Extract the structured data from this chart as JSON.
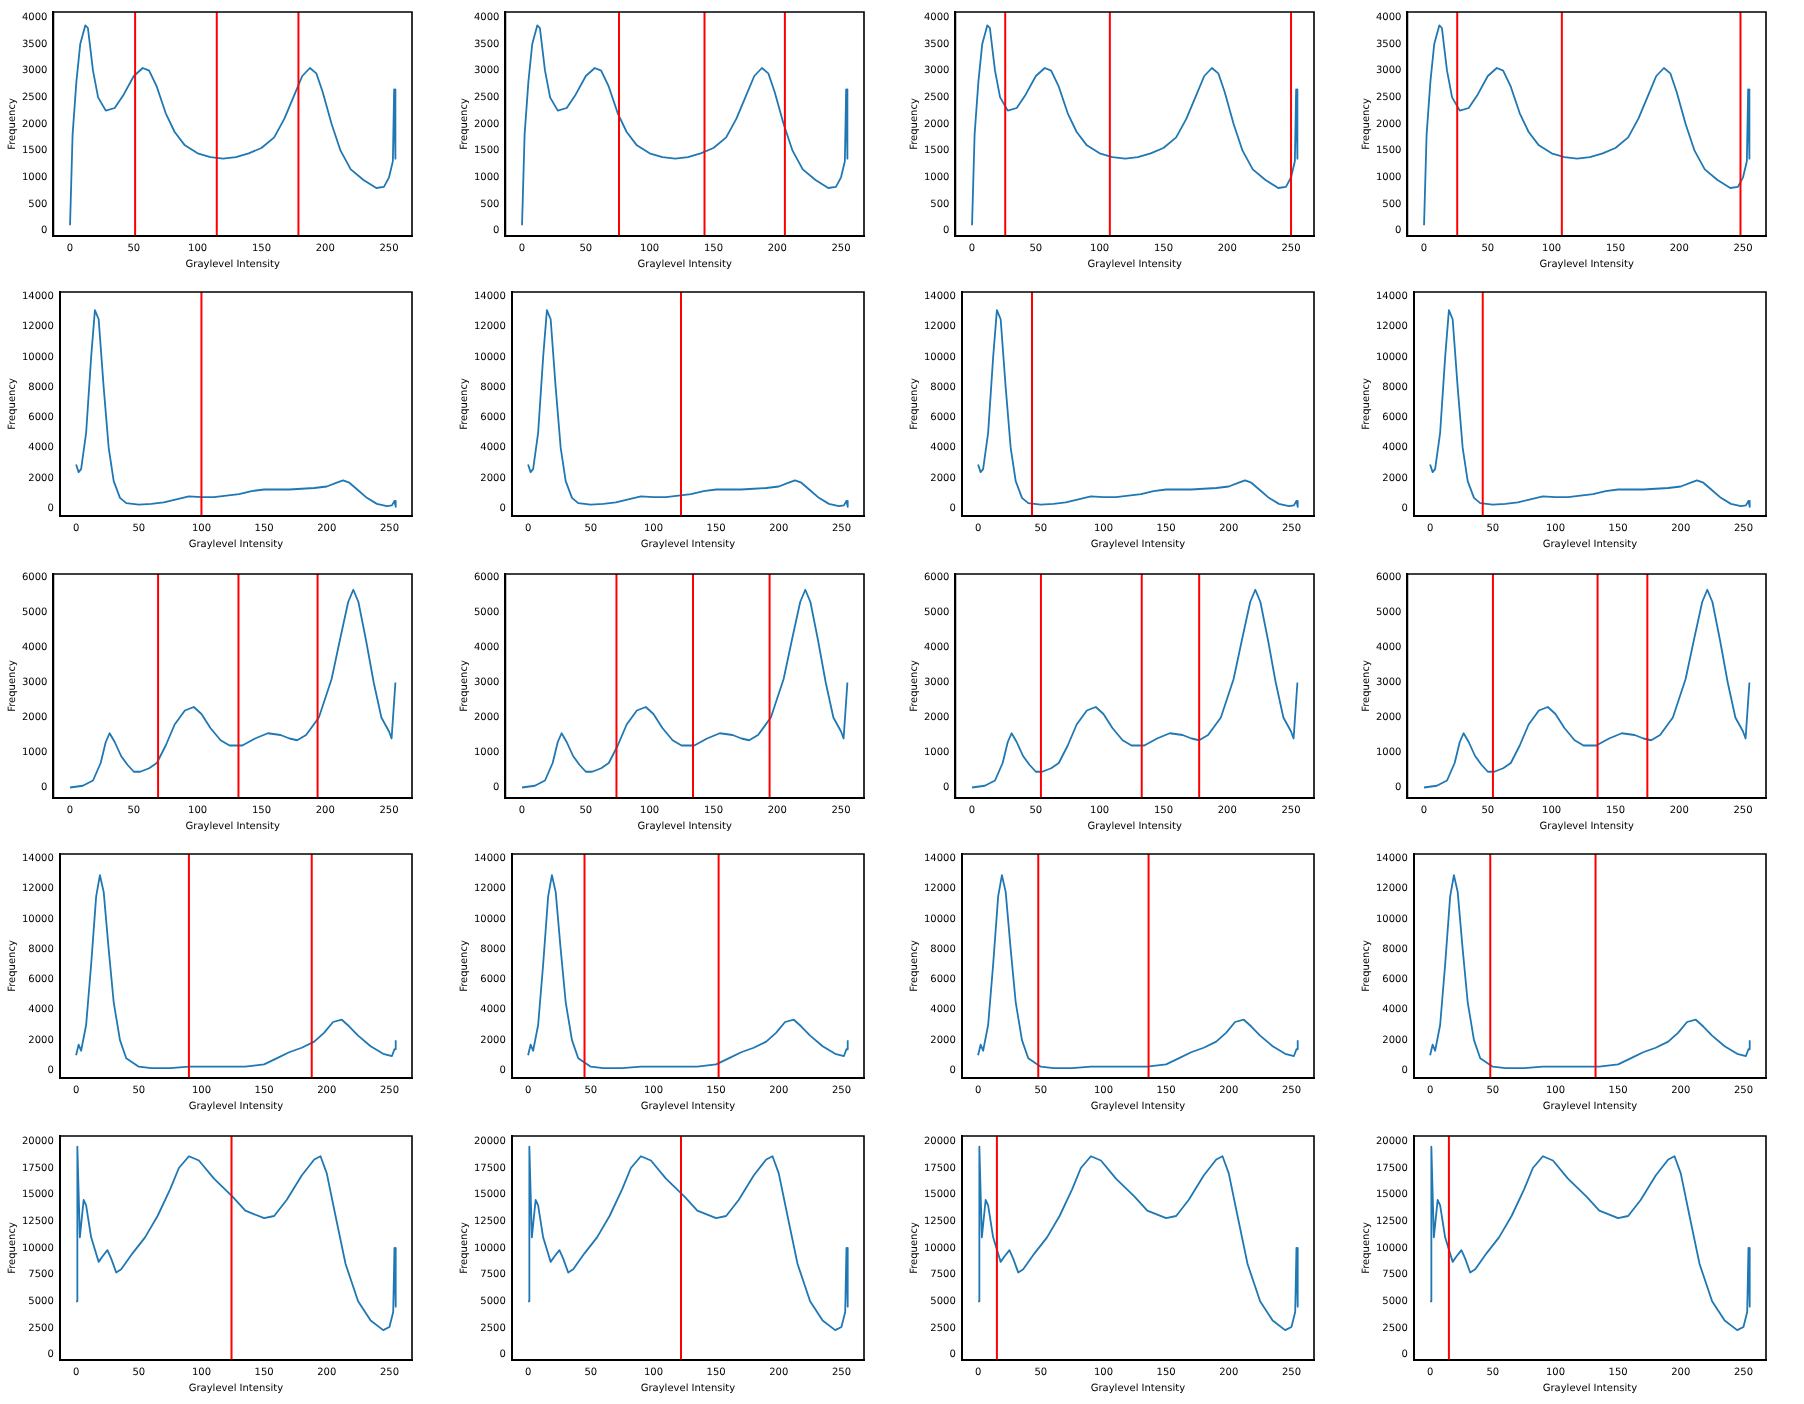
{
  "chart_data": [
    {
      "type": "line",
      "xlabel": "Graylevel Intensity",
      "ylabel": "Frequency",
      "x": [
        0,
        2,
        5,
        8,
        12,
        14,
        18,
        22,
        28,
        35,
        42,
        50,
        57,
        62,
        68,
        75,
        82,
        90,
        100,
        110,
        120,
        130,
        140,
        150,
        160,
        168,
        175,
        182,
        188,
        193,
        198,
        205,
        212,
        220,
        230,
        240,
        246,
        250,
        253,
        254,
        255
      ],
      "series": [
        {
          "color": "#1f77b4",
          "values": [
            100,
            1800,
            2800,
            3500,
            3850,
            3800,
            3000,
            2500,
            2250,
            2300,
            2550,
            2900,
            3050,
            3000,
            2700,
            2200,
            1850,
            1600,
            1450,
            1380,
            1350,
            1380,
            1450,
            1550,
            1750,
            2100,
            2500,
            2900,
            3050,
            2950,
            2600,
            2000,
            1500,
            1150,
            950,
            800,
            820,
            1000,
            1300,
            2650,
            1350
          ]
        }
      ],
      "xlim": [
        -13,
        268
      ],
      "ylim": [
        -100,
        4100
      ],
      "xticks": [
        0,
        50,
        100,
        150,
        200,
        250
      ],
      "yticks": [
        0,
        500,
        1000,
        1500,
        2000,
        2500,
        3000,
        3500,
        4000
      ],
      "ref_lines": [
        {
          "axis": "x",
          "value": 51,
          "color": "#ff0000"
        },
        {
          "axis": "x",
          "value": 115,
          "color": "#ff0000"
        },
        {
          "axis": "x",
          "value": 179,
          "color": "#ff0000"
        }
      ]
    },
    {
      "type": "line",
      "xlabel": "Graylevel Intensity",
      "ylabel": "Frequency",
      "x": [
        0,
        2,
        5,
        8,
        12,
        14,
        18,
        22,
        28,
        35,
        42,
        50,
        57,
        62,
        68,
        75,
        82,
        90,
        100,
        110,
        120,
        130,
        140,
        150,
        160,
        168,
        175,
        182,
        188,
        193,
        198,
        205,
        212,
        220,
        230,
        240,
        246,
        250,
        253,
        254,
        255
      ],
      "series": [
        {
          "color": "#1f77b4",
          "values": [
            100,
            1800,
            2800,
            3500,
            3850,
            3800,
            3000,
            2500,
            2250,
            2300,
            2550,
            2900,
            3050,
            3000,
            2700,
            2200,
            1850,
            1600,
            1450,
            1380,
            1350,
            1380,
            1450,
            1550,
            1750,
            2100,
            2500,
            2900,
            3050,
            2950,
            2600,
            2000,
            1500,
            1150,
            950,
            800,
            820,
            1000,
            1300,
            2650,
            1350
          ]
        }
      ],
      "xlim": [
        -13,
        268
      ],
      "ylim": [
        -100,
        4100
      ],
      "xticks": [
        0,
        50,
        100,
        150,
        200,
        250
      ],
      "yticks": [
        0,
        500,
        1000,
        1500,
        2000,
        2500,
        3000,
        3500,
        4000
      ],
      "ref_lines": [
        {
          "axis": "x",
          "value": 76,
          "color": "#ff0000"
        },
        {
          "axis": "x",
          "value": 143,
          "color": "#ff0000"
        },
        {
          "axis": "x",
          "value": 206,
          "color": "#ff0000"
        }
      ]
    },
    {
      "type": "line",
      "xlabel": "Graylevel Intensity",
      "ylabel": "Frequency",
      "x": [
        0,
        2,
        5,
        8,
        12,
        14,
        18,
        22,
        28,
        35,
        42,
        50,
        57,
        62,
        68,
        75,
        82,
        90,
        100,
        110,
        120,
        130,
        140,
        150,
        160,
        168,
        175,
        182,
        188,
        193,
        198,
        205,
        212,
        220,
        230,
        240,
        246,
        250,
        253,
        254,
        255
      ],
      "series": [
        {
          "color": "#1f77b4",
          "values": [
            100,
            1800,
            2800,
            3500,
            3850,
            3800,
            3000,
            2500,
            2250,
            2300,
            2550,
            2900,
            3050,
            3000,
            2700,
            2200,
            1850,
            1600,
            1450,
            1380,
            1350,
            1380,
            1450,
            1550,
            1750,
            2100,
            2500,
            2900,
            3050,
            2950,
            2600,
            2000,
            1500,
            1150,
            950,
            800,
            820,
            1000,
            1300,
            2650,
            1350
          ]
        }
      ],
      "xlim": [
        -13,
        268
      ],
      "ylim": [
        -100,
        4100
      ],
      "xticks": [
        0,
        50,
        100,
        150,
        200,
        250
      ],
      "yticks": [
        0,
        500,
        1000,
        1500,
        2000,
        2500,
        3000,
        3500,
        4000
      ],
      "ref_lines": [
        {
          "axis": "x",
          "value": 26,
          "color": "#ff0000"
        },
        {
          "axis": "x",
          "value": 108,
          "color": "#ff0000"
        },
        {
          "axis": "x",
          "value": 250,
          "color": "#ff0000"
        }
      ]
    },
    {
      "type": "line",
      "xlabel": "Graylevel Intensity",
      "ylabel": "Frequency",
      "x": [
        0,
        2,
        5,
        8,
        12,
        14,
        18,
        22,
        28,
        35,
        42,
        50,
        57,
        62,
        68,
        75,
        82,
        90,
        100,
        110,
        120,
        130,
        140,
        150,
        160,
        168,
        175,
        182,
        188,
        193,
        198,
        205,
        212,
        220,
        230,
        240,
        246,
        250,
        253,
        254,
        255
      ],
      "series": [
        {
          "color": "#1f77b4",
          "values": [
            100,
            1800,
            2800,
            3500,
            3850,
            3800,
            3000,
            2500,
            2250,
            2300,
            2550,
            2900,
            3050,
            3000,
            2700,
            2200,
            1850,
            1600,
            1450,
            1380,
            1350,
            1380,
            1450,
            1550,
            1750,
            2100,
            2500,
            2900,
            3050,
            2950,
            2600,
            2000,
            1500,
            1150,
            950,
            800,
            820,
            1000,
            1300,
            2650,
            1350
          ]
        }
      ],
      "xlim": [
        -13,
        268
      ],
      "ylim": [
        -100,
        4100
      ],
      "xticks": [
        0,
        50,
        100,
        150,
        200,
        250
      ],
      "yticks": [
        0,
        500,
        1000,
        1500,
        2000,
        2500,
        3000,
        3500,
        4000
      ],
      "ref_lines": [
        {
          "axis": "x",
          "value": 26,
          "color": "#ff0000"
        },
        {
          "axis": "x",
          "value": 108,
          "color": "#ff0000"
        },
        {
          "axis": "x",
          "value": 248,
          "color": "#ff0000"
        }
      ]
    },
    {
      "type": "line",
      "xlabel": "Graylevel Intensity",
      "ylabel": "Frequency",
      "x": [
        0,
        2,
        4,
        8,
        12,
        15,
        18,
        22,
        26,
        30,
        35,
        40,
        50,
        60,
        70,
        80,
        90,
        100,
        110,
        120,
        130,
        140,
        150,
        160,
        170,
        180,
        190,
        200,
        208,
        213,
        218,
        225,
        232,
        240,
        248,
        252,
        254,
        255
      ],
      "series": [
        {
          "color": "#1f77b4",
          "values": [
            2900,
            2400,
            2600,
            5000,
            10000,
            13100,
            12500,
            8000,
            4000,
            1800,
            700,
            350,
            250,
            300,
            400,
            600,
            800,
            750,
            750,
            850,
            950,
            1150,
            1250,
            1250,
            1250,
            1300,
            1350,
            1450,
            1700,
            1850,
            1700,
            1200,
            700,
            300,
            150,
            200,
            500,
            100
          ]
        }
      ],
      "xlim": [
        -13,
        268
      ],
      "ylim": [
        -500,
        14300
      ],
      "xticks": [
        0,
        50,
        100,
        150,
        200,
        250
      ],
      "yticks": [
        0,
        2000,
        4000,
        6000,
        8000,
        10000,
        12000,
        14000
      ],
      "ref_lines": [
        {
          "axis": "x",
          "value": 100,
          "color": "#ff0000"
        }
      ]
    },
    {
      "type": "line",
      "xlabel": "Graylevel Intensity",
      "ylabel": "Frequency",
      "x": [
        0,
        2,
        4,
        8,
        12,
        15,
        18,
        22,
        26,
        30,
        35,
        40,
        50,
        60,
        70,
        80,
        90,
        100,
        110,
        120,
        130,
        140,
        150,
        160,
        170,
        180,
        190,
        200,
        208,
        213,
        218,
        225,
        232,
        240,
        248,
        252,
        254,
        255
      ],
      "series": [
        {
          "color": "#1f77b4",
          "values": [
            2900,
            2400,
            2600,
            5000,
            10000,
            13100,
            12500,
            8000,
            4000,
            1800,
            700,
            350,
            250,
            300,
            400,
            600,
            800,
            750,
            750,
            850,
            950,
            1150,
            1250,
            1250,
            1250,
            1300,
            1350,
            1450,
            1700,
            1850,
            1700,
            1200,
            700,
            300,
            150,
            200,
            500,
            100
          ]
        }
      ],
      "xlim": [
        -13,
        268
      ],
      "ylim": [
        -500,
        14300
      ],
      "xticks": [
        0,
        50,
        100,
        150,
        200,
        250
      ],
      "yticks": [
        0,
        2000,
        4000,
        6000,
        8000,
        10000,
        12000,
        14000
      ],
      "ref_lines": [
        {
          "axis": "x",
          "value": 122,
          "color": "#ff0000"
        }
      ]
    },
    {
      "type": "line",
      "xlabel": "Graylevel Intensity",
      "ylabel": "Frequency",
      "x": [
        0,
        2,
        4,
        8,
        12,
        15,
        18,
        22,
        26,
        30,
        35,
        40,
        50,
        60,
        70,
        80,
        90,
        100,
        110,
        120,
        130,
        140,
        150,
        160,
        170,
        180,
        190,
        200,
        208,
        213,
        218,
        225,
        232,
        240,
        248,
        252,
        254,
        255
      ],
      "series": [
        {
          "color": "#1f77b4",
          "values": [
            2900,
            2400,
            2600,
            5000,
            10000,
            13100,
            12500,
            8000,
            4000,
            1800,
            700,
            350,
            250,
            300,
            400,
            600,
            800,
            750,
            750,
            850,
            950,
            1150,
            1250,
            1250,
            1250,
            1300,
            1350,
            1450,
            1700,
            1850,
            1700,
            1200,
            700,
            300,
            150,
            200,
            500,
            100
          ]
        }
      ],
      "xlim": [
        -13,
        268
      ],
      "ylim": [
        -500,
        14300
      ],
      "xticks": [
        0,
        50,
        100,
        150,
        200,
        250
      ],
      "yticks": [
        0,
        2000,
        4000,
        6000,
        8000,
        10000,
        12000,
        14000
      ],
      "ref_lines": [
        {
          "axis": "x",
          "value": 43,
          "color": "#ff0000"
        }
      ]
    },
    {
      "type": "line",
      "xlabel": "Graylevel Intensity",
      "ylabel": "Frequency",
      "x": [
        0,
        2,
        4,
        8,
        12,
        15,
        18,
        22,
        26,
        30,
        35,
        40,
        50,
        60,
        70,
        80,
        90,
        100,
        110,
        120,
        130,
        140,
        150,
        160,
        170,
        180,
        190,
        200,
        208,
        213,
        218,
        225,
        232,
        240,
        248,
        252,
        254,
        255
      ],
      "series": [
        {
          "color": "#1f77b4",
          "values": [
            2900,
            2400,
            2600,
            5000,
            10000,
            13100,
            12500,
            8000,
            4000,
            1800,
            700,
            350,
            250,
            300,
            400,
            600,
            800,
            750,
            750,
            850,
            950,
            1150,
            1250,
            1250,
            1250,
            1300,
            1350,
            1450,
            1700,
            1850,
            1700,
            1200,
            700,
            300,
            150,
            200,
            500,
            100
          ]
        }
      ],
      "xlim": [
        -13,
        268
      ],
      "ylim": [
        -500,
        14300
      ],
      "xticks": [
        0,
        50,
        100,
        150,
        200,
        250
      ],
      "yticks": [
        0,
        2000,
        4000,
        6000,
        8000,
        10000,
        12000,
        14000
      ],
      "ref_lines": [
        {
          "axis": "x",
          "value": 42,
          "color": "#ff0000"
        }
      ]
    },
    {
      "type": "line",
      "xlabel": "Graylevel Intensity",
      "ylabel": "Frequency",
      "x": [
        0,
        10,
        18,
        24,
        28,
        31,
        35,
        40,
        45,
        50,
        55,
        62,
        68,
        75,
        82,
        90,
        97,
        103,
        110,
        118,
        125,
        135,
        145,
        155,
        165,
        172,
        178,
        185,
        195,
        205,
        212,
        218,
        222,
        226,
        232,
        238,
        244,
        250,
        252,
        255
      ],
      "series": [
        {
          "color": "#1f77b4",
          "values": [
            0,
            50,
            200,
            700,
            1300,
            1550,
            1300,
            900,
            650,
            450,
            450,
            550,
            700,
            1200,
            1800,
            2200,
            2300,
            2100,
            1700,
            1350,
            1200,
            1200,
            1400,
            1550,
            1500,
            1400,
            1350,
            1500,
            2000,
            3100,
            4300,
            5300,
            5650,
            5300,
            4200,
            3000,
            2000,
            1600,
            1400,
            3000
          ]
        }
      ],
      "xlim": [
        -13,
        268
      ],
      "ylim": [
        -300,
        6100
      ],
      "xticks": [
        0,
        50,
        100,
        150,
        200,
        250
      ],
      "yticks": [
        0,
        1000,
        2000,
        3000,
        4000,
        5000,
        6000
      ],
      "ref_lines": [
        {
          "axis": "x",
          "value": 69,
          "color": "#ff0000"
        },
        {
          "axis": "x",
          "value": 132,
          "color": "#ff0000"
        },
        {
          "axis": "x",
          "value": 194,
          "color": "#ff0000"
        }
      ]
    },
    {
      "type": "line",
      "xlabel": "Graylevel Intensity",
      "ylabel": "Frequency",
      "x": [
        0,
        10,
        18,
        24,
        28,
        31,
        35,
        40,
        45,
        50,
        55,
        62,
        68,
        75,
        82,
        90,
        97,
        103,
        110,
        118,
        125,
        135,
        145,
        155,
        165,
        172,
        178,
        185,
        195,
        205,
        212,
        218,
        222,
        226,
        232,
        238,
        244,
        250,
        252,
        255
      ],
      "series": [
        {
          "color": "#1f77b4",
          "values": [
            0,
            50,
            200,
            700,
            1300,
            1550,
            1300,
            900,
            650,
            450,
            450,
            550,
            700,
            1200,
            1800,
            2200,
            2300,
            2100,
            1700,
            1350,
            1200,
            1200,
            1400,
            1550,
            1500,
            1400,
            1350,
            1500,
            2000,
            3100,
            4300,
            5300,
            5650,
            5300,
            4200,
            3000,
            2000,
            1600,
            1400,
            3000
          ]
        }
      ],
      "xlim": [
        -13,
        268
      ],
      "ylim": [
        -300,
        6100
      ],
      "xticks": [
        0,
        50,
        100,
        150,
        200,
        250
      ],
      "yticks": [
        0,
        1000,
        2000,
        3000,
        4000,
        5000,
        6000
      ],
      "ref_lines": [
        {
          "axis": "x",
          "value": 74,
          "color": "#ff0000"
        },
        {
          "axis": "x",
          "value": 134,
          "color": "#ff0000"
        },
        {
          "axis": "x",
          "value": 194,
          "color": "#ff0000"
        }
      ]
    },
    {
      "type": "line",
      "xlabel": "Graylevel Intensity",
      "ylabel": "Frequency",
      "x": [
        0,
        10,
        18,
        24,
        28,
        31,
        35,
        40,
        45,
        50,
        55,
        62,
        68,
        75,
        82,
        90,
        97,
        103,
        110,
        118,
        125,
        135,
        145,
        155,
        165,
        172,
        178,
        185,
        195,
        205,
        212,
        218,
        222,
        226,
        232,
        238,
        244,
        250,
        252,
        255
      ],
      "series": [
        {
          "color": "#1f77b4",
          "values": [
            0,
            50,
            200,
            700,
            1300,
            1550,
            1300,
            900,
            650,
            450,
            450,
            550,
            700,
            1200,
            1800,
            2200,
            2300,
            2100,
            1700,
            1350,
            1200,
            1200,
            1400,
            1550,
            1500,
            1400,
            1350,
            1500,
            2000,
            3100,
            4300,
            5300,
            5650,
            5300,
            4200,
            3000,
            2000,
            1600,
            1400,
            3000
          ]
        }
      ],
      "xlim": [
        -13,
        268
      ],
      "ylim": [
        -300,
        6100
      ],
      "xticks": [
        0,
        50,
        100,
        150,
        200,
        250
      ],
      "yticks": [
        0,
        1000,
        2000,
        3000,
        4000,
        5000,
        6000
      ],
      "ref_lines": [
        {
          "axis": "x",
          "value": 54,
          "color": "#ff0000"
        },
        {
          "axis": "x",
          "value": 133,
          "color": "#ff0000"
        },
        {
          "axis": "x",
          "value": 178,
          "color": "#ff0000"
        }
      ]
    },
    {
      "type": "line",
      "xlabel": "Graylevel Intensity",
      "ylabel": "Frequency",
      "x": [
        0,
        10,
        18,
        24,
        28,
        31,
        35,
        40,
        45,
        50,
        55,
        62,
        68,
        75,
        82,
        90,
        97,
        103,
        110,
        118,
        125,
        135,
        145,
        155,
        165,
        172,
        178,
        185,
        195,
        205,
        212,
        218,
        222,
        226,
        232,
        238,
        244,
        250,
        252,
        255
      ],
      "series": [
        {
          "color": "#1f77b4",
          "values": [
            0,
            50,
            200,
            700,
            1300,
            1550,
            1300,
            900,
            650,
            450,
            450,
            550,
            700,
            1200,
            1800,
            2200,
            2300,
            2100,
            1700,
            1350,
            1200,
            1200,
            1400,
            1550,
            1500,
            1400,
            1350,
            1500,
            2000,
            3100,
            4300,
            5300,
            5650,
            5300,
            4200,
            3000,
            2000,
            1600,
            1400,
            3000
          ]
        }
      ],
      "xlim": [
        -13,
        268
      ],
      "ylim": [
        -300,
        6100
      ],
      "xticks": [
        0,
        50,
        100,
        150,
        200,
        250
      ],
      "yticks": [
        0,
        1000,
        2000,
        3000,
        4000,
        5000,
        6000
      ],
      "ref_lines": [
        {
          "axis": "x",
          "value": 54,
          "color": "#ff0000"
        },
        {
          "axis": "x",
          "value": 136,
          "color": "#ff0000"
        },
        {
          "axis": "x",
          "value": 175,
          "color": "#ff0000"
        }
      ]
    },
    {
      "type": "line",
      "xlabel": "Graylevel Intensity",
      "ylabel": "Frequency",
      "x": [
        0,
        2,
        4,
        8,
        12,
        16,
        19,
        22,
        26,
        30,
        35,
        40,
        50,
        60,
        75,
        90,
        105,
        120,
        135,
        150,
        160,
        170,
        180,
        190,
        198,
        205,
        212,
        218,
        225,
        235,
        245,
        252,
        254,
        255
      ],
      "series": [
        {
          "color": "#1f77b4",
          "values": [
            1000,
            1700,
            1300,
            3000,
            7000,
            11500,
            12900,
            11800,
            8000,
            4500,
            2000,
            800,
            250,
            150,
            150,
            250,
            250,
            250,
            250,
            400,
            800,
            1200,
            1500,
            1900,
            2500,
            3200,
            3350,
            2900,
            2300,
            1600,
            1100,
            950,
            1400,
            2000
          ]
        }
      ],
      "xlim": [
        -13,
        268
      ],
      "ylim": [
        -500,
        14300
      ],
      "xticks": [
        0,
        50,
        100,
        150,
        200,
        250
      ],
      "yticks": [
        0,
        2000,
        4000,
        6000,
        8000,
        10000,
        12000,
        14000
      ],
      "ref_lines": [
        {
          "axis": "x",
          "value": 90,
          "color": "#ff0000"
        },
        {
          "axis": "x",
          "value": 188,
          "color": "#ff0000"
        }
      ]
    },
    {
      "type": "line",
      "xlabel": "Graylevel Intensity",
      "ylabel": "Frequency",
      "x": [
        0,
        2,
        4,
        8,
        12,
        16,
        19,
        22,
        26,
        30,
        35,
        40,
        50,
        60,
        75,
        90,
        105,
        120,
        135,
        150,
        160,
        170,
        180,
        190,
        198,
        205,
        212,
        218,
        225,
        235,
        245,
        252,
        254,
        255
      ],
      "series": [
        {
          "color": "#1f77b4",
          "values": [
            1000,
            1700,
            1300,
            3000,
            7000,
            11500,
            12900,
            11800,
            8000,
            4500,
            2000,
            800,
            250,
            150,
            150,
            250,
            250,
            250,
            250,
            400,
            800,
            1200,
            1500,
            1900,
            2500,
            3200,
            3350,
            2900,
            2300,
            1600,
            1100,
            950,
            1400,
            2000
          ]
        }
      ],
      "xlim": [
        -13,
        268
      ],
      "ylim": [
        -500,
        14300
      ],
      "xticks": [
        0,
        50,
        100,
        150,
        200,
        250
      ],
      "yticks": [
        0,
        2000,
        4000,
        6000,
        8000,
        10000,
        12000,
        14000
      ],
      "ref_lines": [
        {
          "axis": "x",
          "value": 45,
          "color": "#ff0000"
        },
        {
          "axis": "x",
          "value": 152,
          "color": "#ff0000"
        }
      ]
    },
    {
      "type": "line",
      "xlabel": "Graylevel Intensity",
      "ylabel": "Frequency",
      "x": [
        0,
        2,
        4,
        8,
        12,
        16,
        19,
        22,
        26,
        30,
        35,
        40,
        50,
        60,
        75,
        90,
        105,
        120,
        135,
        150,
        160,
        170,
        180,
        190,
        198,
        205,
        212,
        218,
        225,
        235,
        245,
        252,
        254,
        255
      ],
      "series": [
        {
          "color": "#1f77b4",
          "values": [
            1000,
            1700,
            1300,
            3000,
            7000,
            11500,
            12900,
            11800,
            8000,
            4500,
            2000,
            800,
            250,
            150,
            150,
            250,
            250,
            250,
            250,
            400,
            800,
            1200,
            1500,
            1900,
            2500,
            3200,
            3350,
            2900,
            2300,
            1600,
            1100,
            950,
            1400,
            2000
          ]
        }
      ],
      "xlim": [
        -13,
        268
      ],
      "ylim": [
        -500,
        14300
      ],
      "xticks": [
        0,
        50,
        100,
        150,
        200,
        250
      ],
      "yticks": [
        0,
        2000,
        4000,
        6000,
        8000,
        10000,
        12000,
        14000
      ],
      "ref_lines": [
        {
          "axis": "x",
          "value": 48,
          "color": "#ff0000"
        },
        {
          "axis": "x",
          "value": 136,
          "color": "#ff0000"
        }
      ]
    },
    {
      "type": "line",
      "xlabel": "Graylevel Intensity",
      "ylabel": "Frequency",
      "x": [
        0,
        2,
        4,
        8,
        12,
        16,
        19,
        22,
        26,
        30,
        35,
        40,
        50,
        60,
        75,
        90,
        105,
        120,
        135,
        150,
        160,
        170,
        180,
        190,
        198,
        205,
        212,
        218,
        225,
        235,
        245,
        252,
        254,
        255
      ],
      "series": [
        {
          "color": "#1f77b4",
          "values": [
            1000,
            1700,
            1300,
            3000,
            7000,
            11500,
            12900,
            11800,
            8000,
            4500,
            2000,
            800,
            250,
            150,
            150,
            250,
            250,
            250,
            250,
            400,
            800,
            1200,
            1500,
            1900,
            2500,
            3200,
            3350,
            2900,
            2300,
            1600,
            1100,
            950,
            1400,
            2000
          ]
        }
      ],
      "xlim": [
        -13,
        268
      ],
      "ylim": [
        -500,
        14300
      ],
      "xticks": [
        0,
        50,
        100,
        150,
        200,
        250
      ],
      "yticks": [
        0,
        2000,
        4000,
        6000,
        8000,
        10000,
        12000,
        14000
      ],
      "ref_lines": [
        {
          "axis": "x",
          "value": 48,
          "color": "#ff0000"
        },
        {
          "axis": "x",
          "value": 132,
          "color": "#ff0000"
        }
      ]
    },
    {
      "type": "line",
      "xlabel": "Graylevel Intensity",
      "ylabel": "Frequency",
      "x": [
        0,
        1,
        3,
        6,
        8,
        12,
        18,
        21,
        25,
        28,
        32,
        36,
        45,
        55,
        65,
        75,
        82,
        90,
        98,
        110,
        125,
        135,
        150,
        158,
        168,
        180,
        190,
        195,
        200,
        207,
        215,
        225,
        235,
        245,
        250,
        253,
        254,
        255
      ],
      "series": [
        {
          "color": "#1f77b4",
          "values": [
            5000,
            19500,
            11000,
            14500,
            14000,
            11000,
            8700,
            9200,
            9800,
            9000,
            7700,
            8000,
            9500,
            11000,
            13000,
            15500,
            17500,
            18600,
            18200,
            16500,
            14800,
            13500,
            12800,
            13000,
            14500,
            16800,
            18300,
            18600,
            17000,
            13000,
            8500,
            5000,
            3200,
            2300,
            2600,
            4000,
            10000,
            4500
          ]
        }
      ],
      "xlim": [
        -13,
        268
      ],
      "ylim": [
        -500,
        20500
      ],
      "xticks": [
        0,
        50,
        100,
        150,
        200,
        250
      ],
      "yticks": [
        0,
        2500,
        5000,
        7500,
        10000,
        12500,
        15000,
        17500,
        20000
      ],
      "ref_lines": [
        {
          "axis": "x",
          "value": 124,
          "color": "#ff0000"
        }
      ]
    },
    {
      "type": "line",
      "xlabel": "Graylevel Intensity",
      "ylabel": "Frequency",
      "x": [
        0,
        1,
        3,
        6,
        8,
        12,
        18,
        21,
        25,
        28,
        32,
        36,
        45,
        55,
        65,
        75,
        82,
        90,
        98,
        110,
        125,
        135,
        150,
        158,
        168,
        180,
        190,
        195,
        200,
        207,
        215,
        225,
        235,
        245,
        250,
        253,
        254,
        255
      ],
      "series": [
        {
          "color": "#1f77b4",
          "values": [
            5000,
            19500,
            11000,
            14500,
            14000,
            11000,
            8700,
            9200,
            9800,
            9000,
            7700,
            8000,
            9500,
            11000,
            13000,
            15500,
            17500,
            18600,
            18200,
            16500,
            14800,
            13500,
            12800,
            13000,
            14500,
            16800,
            18300,
            18600,
            17000,
            13000,
            8500,
            5000,
            3200,
            2300,
            2600,
            4000,
            10000,
            4500
          ]
        }
      ],
      "xlim": [
        -13,
        268
      ],
      "ylim": [
        -500,
        20500
      ],
      "xticks": [
        0,
        50,
        100,
        150,
        200,
        250
      ],
      "yticks": [
        0,
        2500,
        5000,
        7500,
        10000,
        12500,
        15000,
        17500,
        20000
      ],
      "ref_lines": [
        {
          "axis": "x",
          "value": 122,
          "color": "#ff0000"
        }
      ]
    },
    {
      "type": "line",
      "xlabel": "Graylevel Intensity",
      "ylabel": "Frequency",
      "x": [
        0,
        1,
        3,
        6,
        8,
        12,
        18,
        21,
        25,
        28,
        32,
        36,
        45,
        55,
        65,
        75,
        82,
        90,
        98,
        110,
        125,
        135,
        150,
        158,
        168,
        180,
        190,
        195,
        200,
        207,
        215,
        225,
        235,
        245,
        250,
        253,
        254,
        255
      ],
      "series": [
        {
          "color": "#1f77b4",
          "values": [
            5000,
            19500,
            11000,
            14500,
            14000,
            11000,
            8700,
            9200,
            9800,
            9000,
            7700,
            8000,
            9500,
            11000,
            13000,
            15500,
            17500,
            18600,
            18200,
            16500,
            14800,
            13500,
            12800,
            13000,
            14500,
            16800,
            18300,
            18600,
            17000,
            13000,
            8500,
            5000,
            3200,
            2300,
            2600,
            4000,
            10000,
            4500
          ]
        }
      ],
      "xlim": [
        -13,
        268
      ],
      "ylim": [
        -500,
        20500
      ],
      "xticks": [
        0,
        50,
        100,
        150,
        200,
        250
      ],
      "yticks": [
        0,
        2500,
        5000,
        7500,
        10000,
        12500,
        15000,
        17500,
        20000
      ],
      "ref_lines": [
        {
          "axis": "x",
          "value": 15,
          "color": "#ff0000"
        }
      ]
    },
    {
      "type": "line",
      "xlabel": "Graylevel Intensity",
      "ylabel": "Frequency",
      "x": [
        0,
        1,
        3,
        6,
        8,
        12,
        18,
        21,
        25,
        28,
        32,
        36,
        45,
        55,
        65,
        75,
        82,
        90,
        98,
        110,
        125,
        135,
        150,
        158,
        168,
        180,
        190,
        195,
        200,
        207,
        215,
        225,
        235,
        245,
        250,
        253,
        254,
        255
      ],
      "series": [
        {
          "color": "#1f77b4",
          "values": [
            5000,
            19500,
            11000,
            14500,
            14000,
            11000,
            8700,
            9200,
            9800,
            9000,
            7700,
            8000,
            9500,
            11000,
            13000,
            15500,
            17500,
            18600,
            18200,
            16500,
            14800,
            13500,
            12800,
            13000,
            14500,
            16800,
            18300,
            18600,
            17000,
            13000,
            8500,
            5000,
            3200,
            2300,
            2600,
            4000,
            10000,
            4500
          ]
        }
      ],
      "xlim": [
        -13,
        268
      ],
      "ylim": [
        -500,
        20500
      ],
      "xticks": [
        0,
        50,
        100,
        150,
        200,
        250
      ],
      "yticks": [
        0,
        2500,
        5000,
        7500,
        10000,
        12500,
        15000,
        17500,
        20000
      ],
      "ref_lines": [
        {
          "axis": "x",
          "value": 15,
          "color": "#ff0000"
        }
      ]
    }
  ]
}
